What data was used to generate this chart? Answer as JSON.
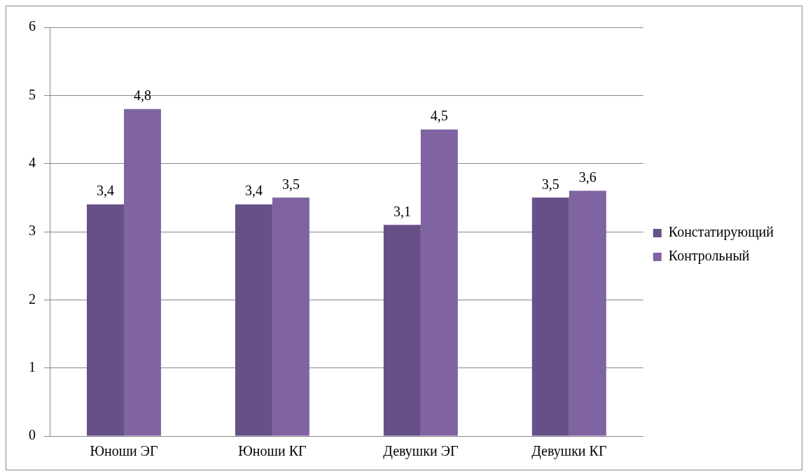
{
  "chart_data": {
    "type": "bar",
    "categories": [
      "Юноши ЭГ",
      "Юноши КГ",
      "Девушки ЭГ",
      "Девушки КГ"
    ],
    "series": [
      {
        "name": "Констатирующий",
        "color": "#674f87",
        "values": [
          3.4,
          3.4,
          3.1,
          3.5
        ],
        "value_labels": [
          "3,4",
          "3,4",
          "3,1",
          "3,5"
        ]
      },
      {
        "name": "Контрольный",
        "color": "#8064a2",
        "values": [
          4.8,
          3.5,
          4.5,
          3.6
        ],
        "value_labels": [
          "4,8",
          "3,5",
          "4,5",
          "3,6"
        ]
      }
    ],
    "ylim": [
      0,
      6
    ],
    "yticks": [
      0,
      1,
      2,
      3,
      4,
      5,
      6
    ],
    "grid": "y",
    "legend": "right"
  }
}
